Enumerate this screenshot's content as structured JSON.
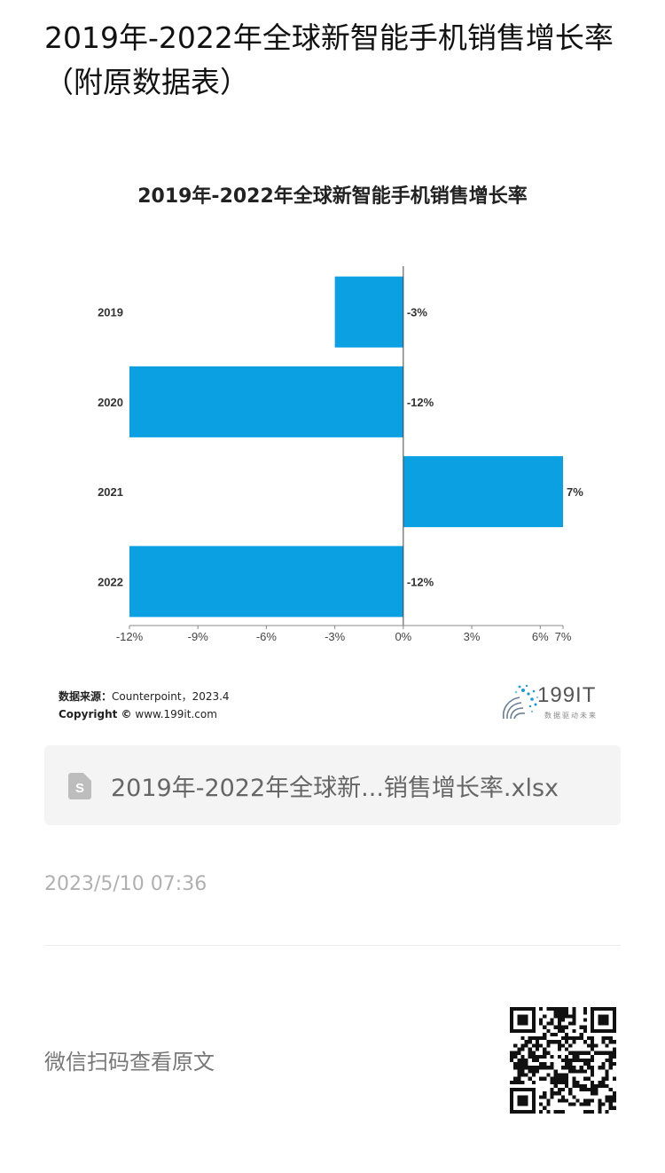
{
  "page": {
    "title": "2019年-2022年全球新智能手机销售增长率（附原数据表）"
  },
  "chart_data": {
    "type": "bar",
    "orientation": "horizontal",
    "title": "2019年-2022年全球新智能手机销售增长率",
    "categories": [
      "2019",
      "2020",
      "2021",
      "2022"
    ],
    "values": [
      -3,
      -12,
      7,
      -12
    ],
    "data_labels": [
      "-3%",
      "-12%",
      "7%",
      "-12%"
    ],
    "x_ticks": [
      -12,
      -9,
      -6,
      -3,
      0,
      3,
      6,
      7
    ],
    "x_tick_labels": [
      "-12%",
      "-9%",
      "-6%",
      "-3%",
      "0%",
      "3%",
      "6%",
      "7%"
    ],
    "xlim": [
      -12,
      7
    ],
    "bar_color": "#0aa0e2",
    "grid": false,
    "legend": "none"
  },
  "source": {
    "label": "数据来源：",
    "text": "Counterpoint，2023.4",
    "copyright_label": "Copyright ©",
    "copyright_text": "www.199it.com"
  },
  "logo": {
    "name": "199IT",
    "slogan": "数据驱动未来"
  },
  "attachment": {
    "icon": "spreadsheet-file-icon",
    "filename": "2019年-2022年全球新...销售增长率.xlsx"
  },
  "meta": {
    "date": "2023/5/10 07:36"
  },
  "footer": {
    "scan_hint": "微信扫码查看原文",
    "qr_icon": "qr-code-icon"
  }
}
